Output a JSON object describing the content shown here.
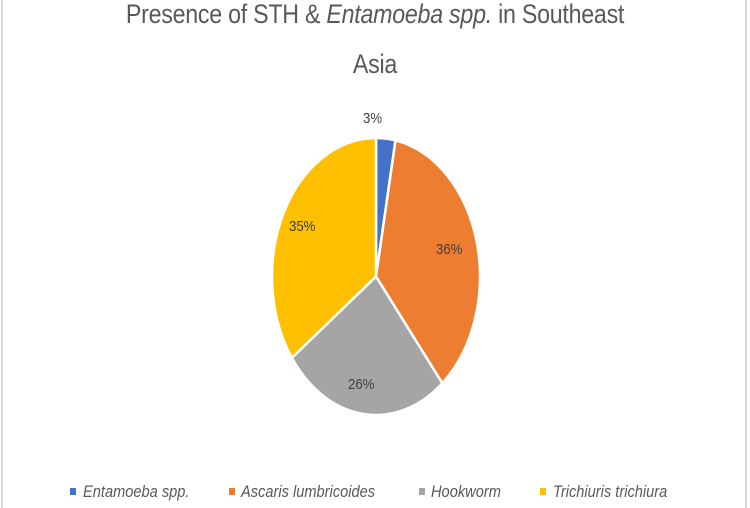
{
  "chart_data": {
    "type": "pie",
    "title": "Presence of STH & Entamoeba spp. in Southeast Asia",
    "title_lines": {
      "line1_a": "Presence of STH & ",
      "line1_italic": "Entamoeba spp.",
      "line1_b": " in Southeast",
      "line2": "Asia"
    },
    "categories": [
      "Entamoeba spp.",
      "Ascaris lumbricoides",
      "Hookworm",
      "Trichiuris trichiura"
    ],
    "values": [
      3,
      36,
      26,
      35
    ],
    "labels": [
      "3%",
      "36%",
      "26%",
      "35%"
    ],
    "colors": [
      "#4472C4",
      "#ED7D31",
      "#A5A5A5",
      "#FFC000"
    ],
    "start_angle": "12 o'clock, clockwise",
    "legend_position": "bottom",
    "data_labels": true
  },
  "legend": {
    "items": [
      {
        "label": "Entamoeba spp.",
        "color": "#4472C4"
      },
      {
        "label": "Ascaris lumbricoides",
        "color": "#ED7D31"
      },
      {
        "label": "Hookworm",
        "color": "#A5A5A5"
      },
      {
        "label": "Trichiuris trichiura",
        "color": "#FFC000"
      }
    ]
  }
}
